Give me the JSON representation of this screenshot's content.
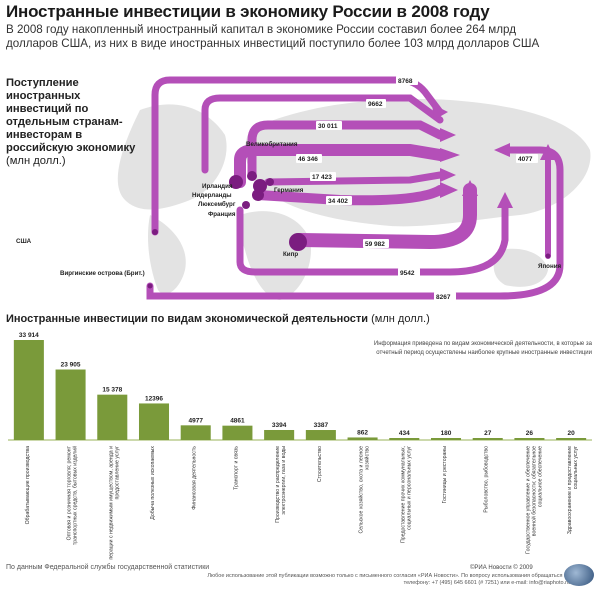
{
  "title": "Иностранные инвестиции в экономику России в 2008 году",
  "subtitle": "В 2008 году накопленный иностранный капитал в экономике России составил более 264 млрд долларов США, из них в виде иностранных инвестиций поступило более 103 млрд долларов США",
  "map_legend": {
    "title": "Поступление иностранных инвестиций по отдельным странам-инвесторам в российскую экономику",
    "unit": "(млн долл.)"
  },
  "map_data": [
    {
      "country": "США",
      "value": "8768"
    },
    {
      "country": "Великобритания",
      "value": "30 011"
    },
    {
      "country": "Германия",
      "value": "17 423"
    },
    {
      "country": "Ирландия",
      "value": "46 346"
    },
    {
      "country": "Нидерланды",
      "value": "9662"
    },
    {
      "country": "Люксембург",
      "value": "34 402"
    },
    {
      "country": "Франция",
      "value": "9542"
    },
    {
      "country": "Кипр",
      "value": "59 982"
    },
    {
      "country": "Япония",
      "value": "4077"
    },
    {
      "country": "Виргинские острова (Брит.)",
      "value": "8267"
    }
  ],
  "bar_section_title": "Иностранные инвестиции по видам экономической деятельности",
  "bar_section_unit": "(млн долл.)",
  "bar_note": "Информация приведена по видам экономической деятельности, в которые за отчетный период осуществлены наиболее крупные иностранные инвестиции",
  "chart_data": {
    "type": "bar",
    "title": "Иностранные инвестиции по видам экономической деятельности",
    "ylabel": "(млн долл.)",
    "categories": [
      "Обрабатывающие производства",
      "Оптовая и розничная торговля; ремонт транспортных средств, бытовых изделий",
      "Операции с недвижимым имуществом, аренда и предоставление услуг",
      "Добыча полезных ископаемых",
      "Финансовая деятельность",
      "Транспорт и связь",
      "Производство и распределение электроэнергии, газа и воды",
      "Строительство",
      "Сельское хозяйство, охота и лесное хозяйство",
      "Предоставление прочих коммунальных, социальных и персональных услуг",
      "Гостиницы и рестораны",
      "Рыболовство, рыбоводство",
      "Государственное управление и обеспечение военной безопасности; обязательное социальное обеспечение",
      "Здравоохранение и предоставление социальных услуг"
    ],
    "values": [
      33914,
      23905,
      15378,
      12396,
      4977,
      4861,
      3394,
      3387,
      862,
      434,
      180,
      27,
      26,
      20
    ],
    "value_labels": [
      "33 914",
      "23 905",
      "15 378",
      "12396",
      "4977",
      "4861",
      "3394",
      "3387",
      "862",
      "434",
      "180",
      "27",
      "26",
      "20"
    ],
    "bar_color": "#7a9a3a"
  },
  "colors": {
    "arrow": "#b44fb8",
    "arrow_dark": "#8e2a92",
    "node": "#7b1d80",
    "map_land": "#dcdcdc",
    "bar": "#7a9a3a",
    "bar_top": "#a4c25a"
  },
  "source": "По данным Федеральной службы государственной статистики",
  "copyright": "©РИА Новости © 2009",
  "legal": "Любое использование этой публикации возможно только с письменного согласия «РИА Новости». По вопросу использования обращаться по телефону: +7 (495) 645 6601 (# 7251) или e-mail: info@riaphoto.ru"
}
